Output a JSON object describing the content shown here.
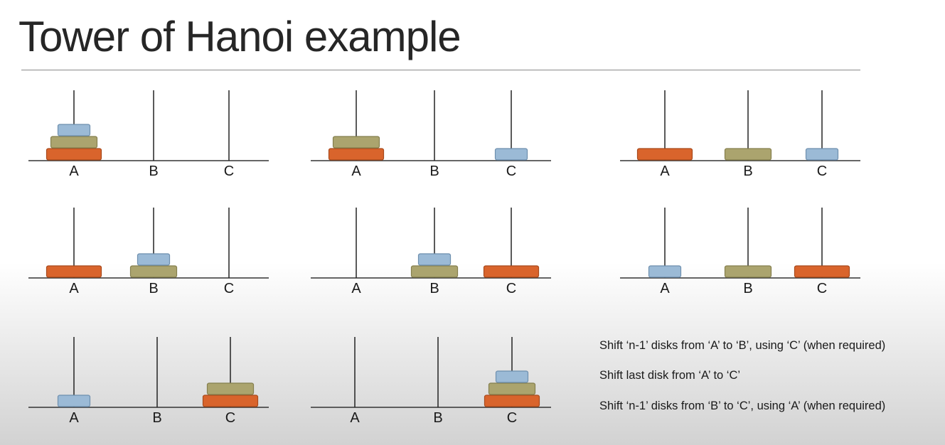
{
  "title": "Tower of Hanoi example",
  "pegs": [
    "A",
    "B",
    "C"
  ],
  "disks": {
    "small": {
      "color": "#9bbad6"
    },
    "medium": {
      "color": "#aba46e"
    },
    "large": {
      "color": "#d9642c"
    }
  },
  "states": [
    {
      "A": [
        "large",
        "medium",
        "small"
      ],
      "B": [],
      "C": []
    },
    {
      "A": [
        "large",
        "medium"
      ],
      "B": [],
      "C": [
        "small"
      ]
    },
    {
      "A": [
        "large"
      ],
      "B": [
        "medium"
      ],
      "C": [
        "small"
      ]
    },
    {
      "A": [
        "large"
      ],
      "B": [
        "medium",
        "small"
      ],
      "C": []
    },
    {
      "A": [],
      "B": [
        "medium",
        "small"
      ],
      "C": [
        "large"
      ]
    },
    {
      "A": [
        "small"
      ],
      "B": [
        "medium"
      ],
      "C": [
        "large"
      ]
    },
    {
      "A": [
        "small"
      ],
      "B": [],
      "C": [
        "large",
        "medium"
      ]
    },
    {
      "A": [],
      "B": [],
      "C": [
        "large",
        "medium",
        "small"
      ]
    }
  ],
  "steps": [
    "Shift ‘n-1’ disks from ‘A’ to ‘B’, using ‘C’ (when required)",
    "Shift last disk from ‘A’ to ‘C’",
    "Shift ‘n-1’ disks from ‘B’ to ‘C’, using ‘A’ (when required)"
  ]
}
